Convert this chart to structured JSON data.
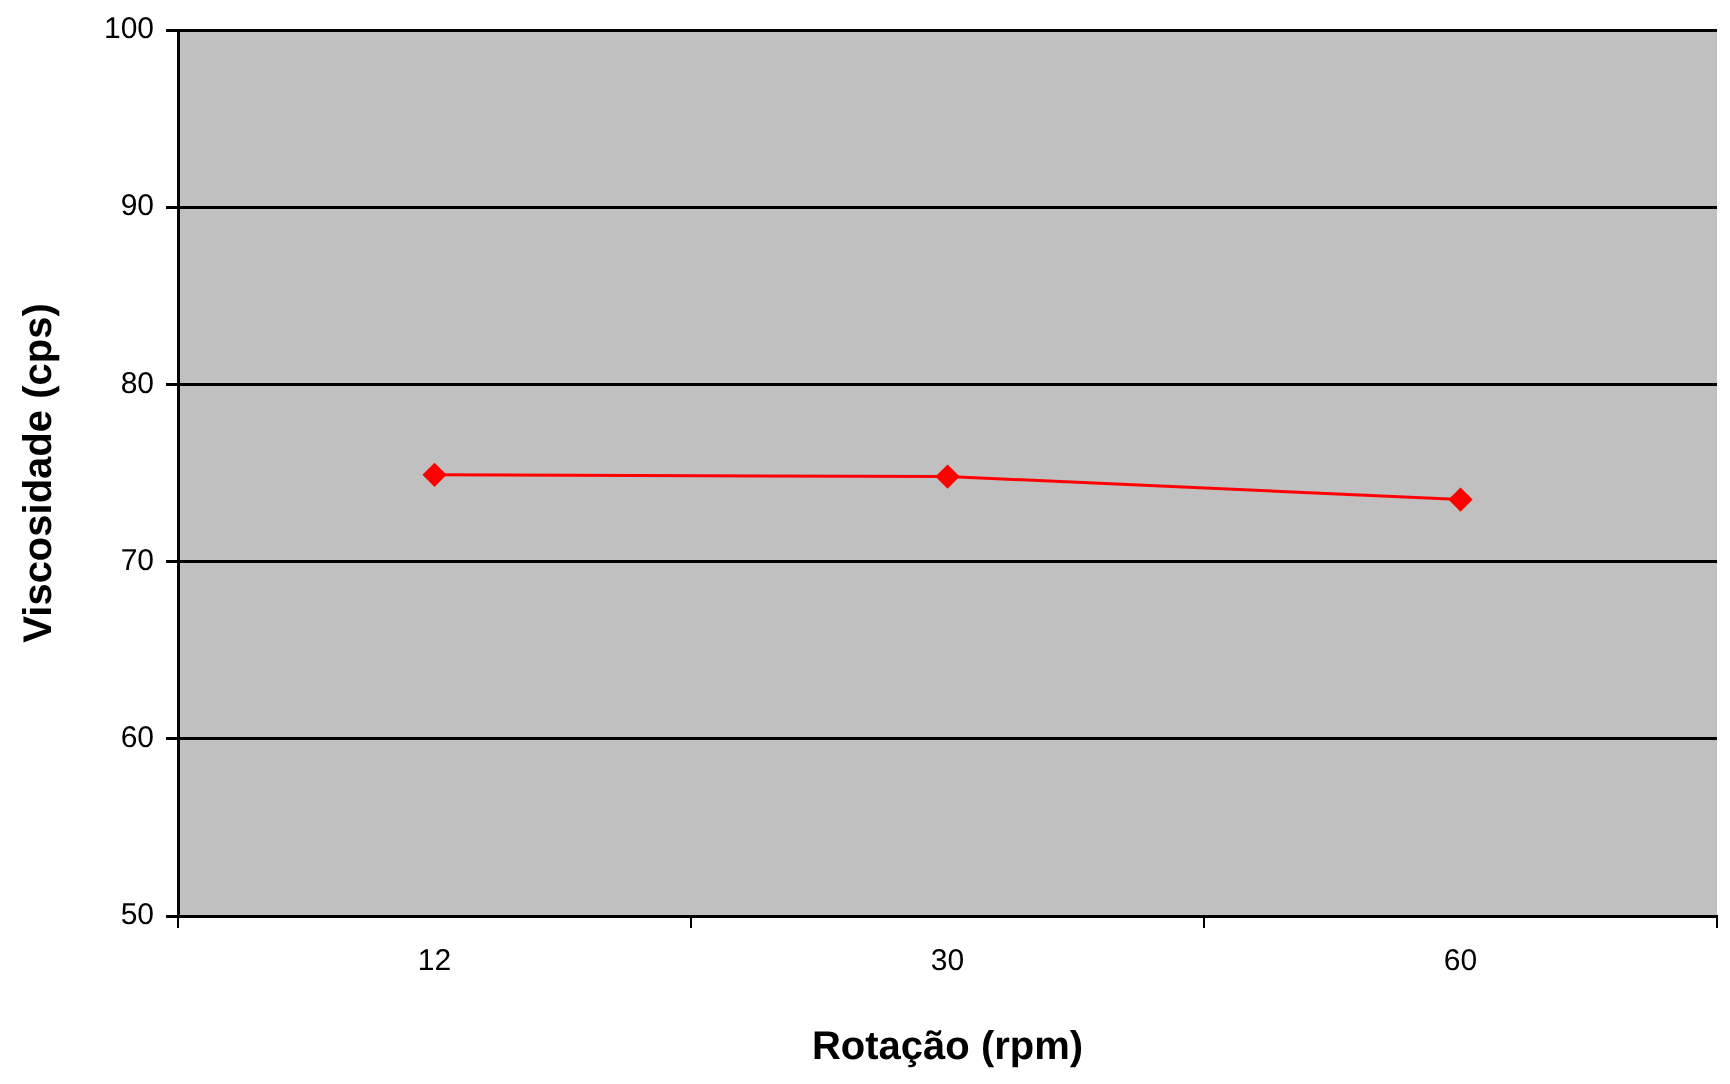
{
  "chart_data": {
    "type": "line",
    "xlabel": "Rotação (rpm)",
    "ylabel": "Viscosidade (cps)",
    "categories": [
      "12",
      "30",
      "60"
    ],
    "series": [
      {
        "color": "#ff0000",
        "values": [
          74.9,
          74.8,
          73.5
        ]
      }
    ],
    "ylim": [
      50,
      100
    ],
    "yticks": [
      50,
      60,
      70,
      80,
      90,
      100
    ],
    "grid": "y",
    "legend": false,
    "marker": "diamond",
    "line_style": "solid"
  }
}
